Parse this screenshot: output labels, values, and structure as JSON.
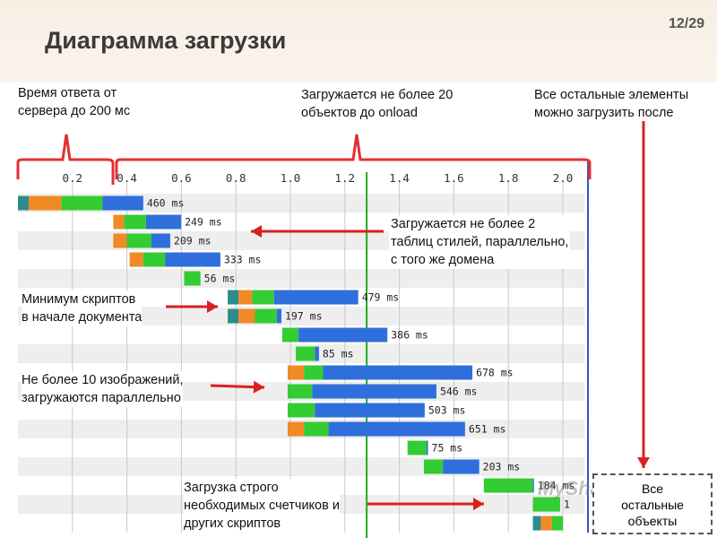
{
  "header": {
    "title": "Диаграмма загрузки",
    "page": "12/29"
  },
  "notes": {
    "server_response": "Время ответа от\nсервера до 200 мс",
    "onload_limit": "Загружается не более 20\nобъектов до onload",
    "after_onload": "Все остальные элементы\nможно загрузить после",
    "stylesheets": "Загружается не более 2\nтаблиц стилей, параллельно,\nс того же домена",
    "scripts_min": "Минимум скриптов\nв начале документа",
    "images": "Не более 10 изображений,\nзагружаются параллельно",
    "counters": "Загрузка строго\nнеобходимых счетчиков и\nдругих скриптов"
  },
  "box_label": "Все\nостальные\nобъекты",
  "watermark": "MyShared",
  "colors": {
    "dns": "#2e8b8b",
    "connect": "#f08a24",
    "first_byte": "#33cc33",
    "download": "#2f6fdb",
    "onload_line": "#22aa22",
    "arrow": "#d92020",
    "brace": "#e23030",
    "end_line": "#3355cc"
  },
  "chart_data": {
    "type": "waterfall",
    "x_ticks": [
      "0.2",
      "0.4",
      "0.6",
      "0.8",
      "1.0",
      "1.2",
      "1.4",
      "1.6",
      "1.8",
      "2.0"
    ],
    "x_unit": "s",
    "onload_time": 1.28,
    "rows": [
      {
        "start": 0.0,
        "dns": 0.04,
        "connect": 0.12,
        "first_byte": 0.15,
        "label": "460 ms"
      },
      {
        "start": 0.35,
        "dns": 0.0,
        "connect": 0.04,
        "first_byte": 0.08,
        "label": "249 ms"
      },
      {
        "start": 0.35,
        "dns": 0.0,
        "connect": 0.05,
        "first_byte": 0.09,
        "label": "209 ms"
      },
      {
        "start": 0.41,
        "dns": 0.0,
        "connect": 0.05,
        "first_byte": 0.08,
        "label": "333 ms"
      },
      {
        "start": 0.61,
        "dns": 0.0,
        "connect": 0.0,
        "first_byte": 0.06,
        "label": "56 ms"
      },
      {
        "start": 0.77,
        "dns": 0.04,
        "connect": 0.05,
        "first_byte": 0.08,
        "label": "479 ms"
      },
      {
        "start": 0.77,
        "dns": 0.04,
        "connect": 0.06,
        "first_byte": 0.08,
        "label": "197 ms"
      },
      {
        "start": 0.97,
        "dns": 0.0,
        "connect": 0.0,
        "first_byte": 0.06,
        "label": "386 ms"
      },
      {
        "start": 1.02,
        "dns": 0.0,
        "connect": 0.0,
        "first_byte": 0.07,
        "label": "85 ms"
      },
      {
        "start": 0.99,
        "dns": 0.0,
        "connect": 0.06,
        "first_byte": 0.07,
        "label": "678 ms"
      },
      {
        "start": 0.99,
        "dns": 0.0,
        "connect": 0.0,
        "first_byte": 0.09,
        "label": "546 ms"
      },
      {
        "start": 0.99,
        "dns": 0.0,
        "connect": 0.0,
        "first_byte": 0.1,
        "label": "503 ms"
      },
      {
        "start": 0.99,
        "dns": 0.0,
        "connect": 0.06,
        "first_byte": 0.09,
        "label": "651 ms"
      },
      {
        "start": 1.43,
        "dns": 0.0,
        "connect": 0.0,
        "first_byte": 0.07,
        "label": "75 ms"
      },
      {
        "start": 1.49,
        "dns": 0.0,
        "connect": 0.0,
        "first_byte": 0.07,
        "label": "203 ms"
      },
      {
        "start": 1.71,
        "dns": 0.0,
        "connect": 0.0,
        "first_byte": 0.18,
        "label": "184 ms"
      },
      {
        "start": 1.89,
        "dns": 0.0,
        "connect": 0.0,
        "first_byte": 0.1,
        "label": "1"
      },
      {
        "start": 1.89,
        "dns": 0.03,
        "connect": 0.04,
        "first_byte": 0.04,
        "label": ""
      }
    ]
  }
}
